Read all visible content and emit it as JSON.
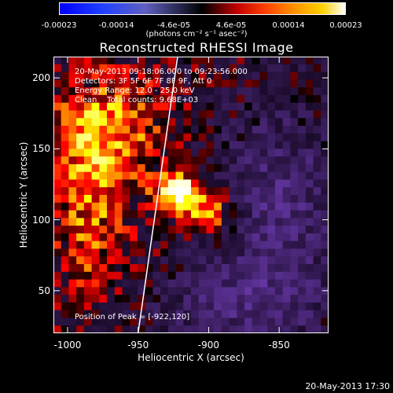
{
  "colorbar": {
    "ticks": [
      "-0.00023",
      "-0.00014",
      "-4.6e-05",
      "4.6e-05",
      "0.00014",
      "0.00023"
    ],
    "units": "(photons cm⁻² s⁻¹ asec⁻²)"
  },
  "chart_data": {
    "type": "heatmap",
    "title": "Reconstructed RHESSI Image",
    "xlabel": "Heliocentric X (arcsec)",
    "ylabel": "Heliocentric Y (arcsec)",
    "xlim": [
      -1010,
      -815
    ],
    "ylim": [
      20,
      215
    ],
    "xticks": [
      -1000,
      -950,
      -900,
      -850
    ],
    "yticks": [
      50,
      100,
      150,
      200
    ],
    "value_range": [
      -0.00023,
      0.00023
    ],
    "peak": [
      -922,
      120
    ],
    "limb_line": {
      "x": [
        -950,
        -922
      ],
      "y": [
        20,
        215
      ]
    },
    "colormap": "hot-with-negatives",
    "colors": {
      "negative": "#6a3aa8",
      "zero": "#000000",
      "positive_low": "#c81e00",
      "positive_mid": "#ff8c00",
      "positive_high": "#ffffff"
    }
  },
  "info": {
    "time": "20-May-2013 09:18:06.000 to 09:23:56.000",
    "detectors": "Detectors: 3F 5F 6F 7F 8F 9F, Att 0",
    "energy": "Energy Range: 12.0 - 25.0 keV",
    "method": "Clean    Total counts: 9.68E+03",
    "peak": "Position of Peak = [-922,120]"
  },
  "footer": "20-May-2013 17:30"
}
